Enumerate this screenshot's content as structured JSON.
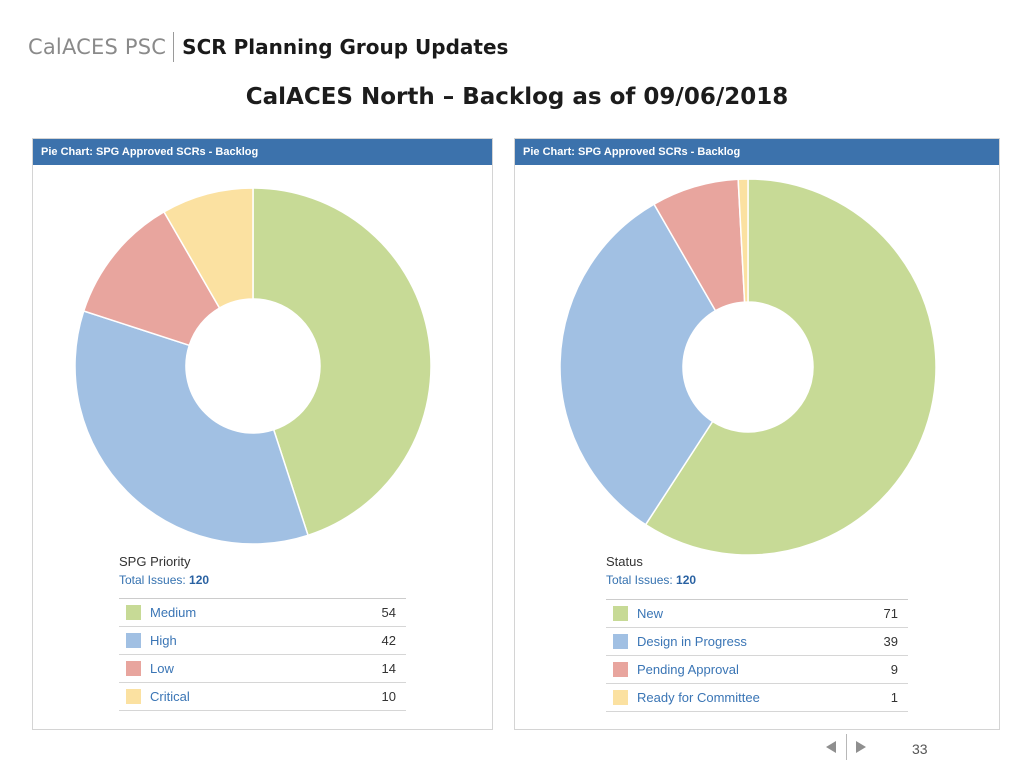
{
  "header": {
    "brand": "CalACES PSC",
    "section_title": "SCR Planning Group Updates"
  },
  "slide_title": "CalACES North – Backlog as of 09/06/2018",
  "chart_data": [
    {
      "type": "pie",
      "title": "Pie Chart: SPG Approved SCRs - Backlog",
      "dimension": "SPG Priority",
      "total_label": "Total Issues:",
      "total": 120,
      "categories": [
        "Medium",
        "High",
        "Low",
        "Critical"
      ],
      "values": [
        54,
        42,
        14,
        10
      ],
      "colors": [
        "#c7da96",
        "#a1c0e3",
        "#e8a59e",
        "#fbe1a1"
      ]
    },
    {
      "type": "pie",
      "title": "Pie Chart: SPG Approved SCRs - Backlog",
      "dimension": "Status",
      "total_label": "Total Issues:",
      "total": 120,
      "categories": [
        "New",
        "Design in Progress",
        "Pending Approval",
        "Ready for Committee"
      ],
      "values": [
        71,
        39,
        9,
        1
      ],
      "colors": [
        "#c7da96",
        "#a1c0e3",
        "#e8a59e",
        "#fbe1a1"
      ]
    }
  ],
  "footer": {
    "page_number": "33"
  }
}
